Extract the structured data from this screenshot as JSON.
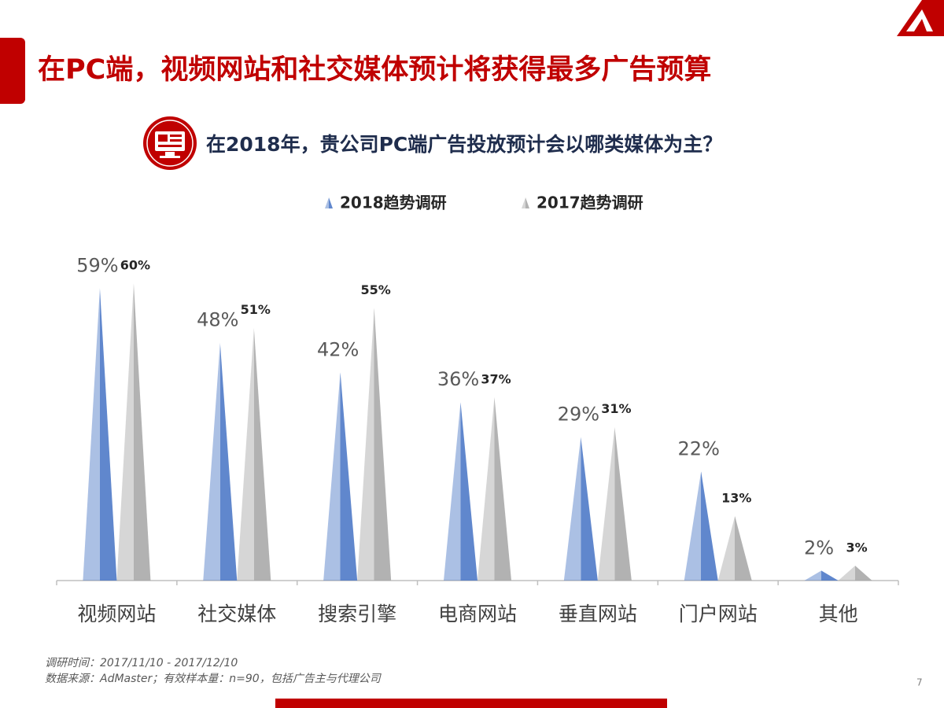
{
  "header": {
    "title": "在PC端，视频网站和社交媒体预计将获得最多广告预算",
    "question": "在2018年，贵公司PC端广告投放预计会以哪类媒体为主？"
  },
  "chart_data": {
    "type": "bar",
    "categories": [
      "视频网站",
      "社交媒体",
      "搜索引擎",
      "电商网站",
      "垂直网站",
      "门户网站",
      "其他"
    ],
    "series": [
      {
        "name": "2018趋势调研",
        "color": "#4472c4",
        "values": [
          59,
          48,
          42,
          36,
          29,
          22,
          2
        ],
        "value_labels": [
          "59%",
          "48%",
          "42%",
          "36%",
          "29%",
          "22%",
          "2%"
        ]
      },
      {
        "name": "2017趋势调研",
        "color": "#a5a5a5",
        "values": [
          60,
          51,
          55,
          37,
          31,
          13,
          3
        ],
        "value_labels": [
          "60%",
          "51%",
          "55%",
          "37%",
          "31%",
          "13%",
          "3%"
        ]
      }
    ],
    "ylim": [
      0,
      60
    ]
  },
  "footer": {
    "notes": [
      "调研时间：2017/11/10 - 2017/12/10",
      "数据来源：AdMaster；有效样本量：n=90，包括广告主与代理公司"
    ],
    "page": "7"
  }
}
